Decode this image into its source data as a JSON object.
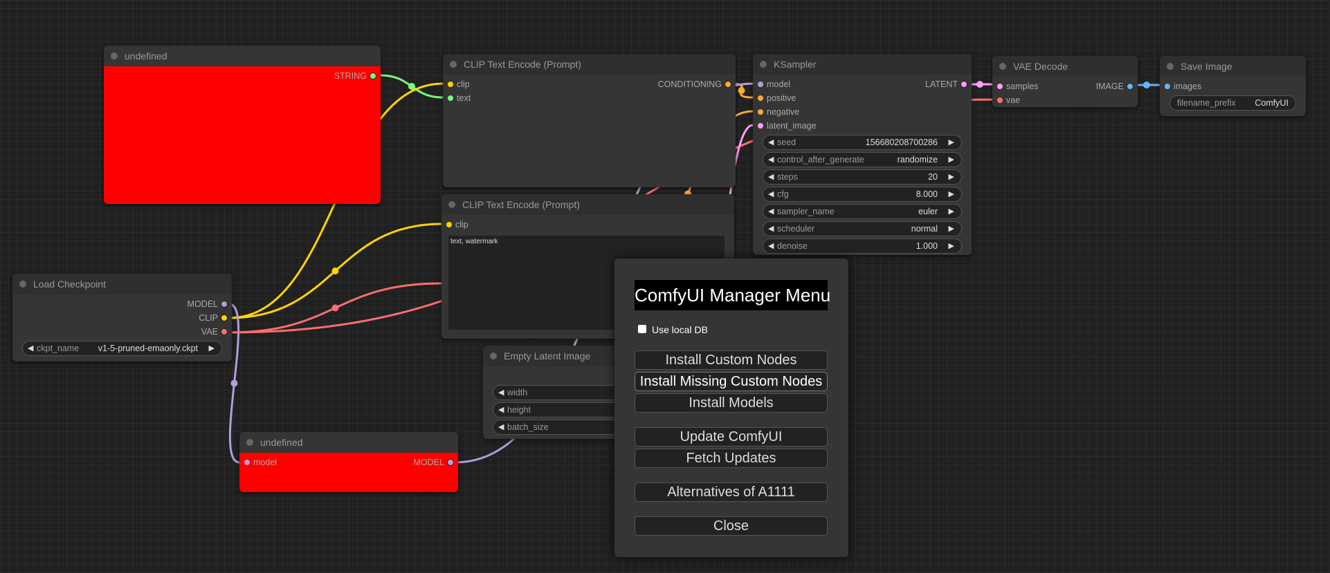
{
  "slot_colors": {
    "MODEL": "#b39ddb",
    "CLIP": "#ffd500",
    "VAE": "#ff6e6e",
    "CONDITIONING": "#ffa931",
    "LATENT": "#ff9cf9",
    "IMAGE": "#64b5f6",
    "STRING": "#77ff77"
  },
  "nodes": [
    {
      "id": "undefined-top",
      "title": "undefined",
      "red": true,
      "inputs": [],
      "outputs": [
        {
          "label": "STRING",
          "type": "STRING"
        }
      ],
      "widgets": []
    },
    {
      "id": "clip-text-encode-1",
      "title": "CLIP Text Encode (Prompt)",
      "inputs": [
        {
          "label": "clip",
          "type": "CLIP"
        },
        {
          "label": "text",
          "type": "STRING"
        }
      ],
      "outputs": [
        {
          "label": "CONDITIONING",
          "type": "CONDITIONING"
        }
      ],
      "widgets": []
    },
    {
      "id": "ksampler",
      "title": "KSampler",
      "inputs": [
        {
          "label": "model",
          "type": "MODEL"
        },
        {
          "label": "positive",
          "type": "CONDITIONING"
        },
        {
          "label": "negative",
          "type": "CONDITIONING"
        },
        {
          "label": "latent_image",
          "type": "LATENT"
        }
      ],
      "outputs": [
        {
          "label": "LATENT",
          "type": "LATENT"
        }
      ],
      "widgets": [
        {
          "label": "seed",
          "value": "156680208700286"
        },
        {
          "label": "control_after_generate",
          "value": "randomize"
        },
        {
          "label": "steps",
          "value": "20"
        },
        {
          "label": "cfg",
          "value": "8.000"
        },
        {
          "label": "sampler_name",
          "value": "euler"
        },
        {
          "label": "scheduler",
          "value": "normal"
        },
        {
          "label": "denoise",
          "value": "1.000"
        }
      ]
    },
    {
      "id": "vae-decode",
      "title": "VAE Decode",
      "inputs": [
        {
          "label": "samples",
          "type": "LATENT"
        },
        {
          "label": "vae",
          "type": "VAE"
        }
      ],
      "outputs": [
        {
          "label": "IMAGE",
          "type": "IMAGE"
        }
      ],
      "widgets": []
    },
    {
      "id": "save-image",
      "title": "Save Image",
      "inputs": [
        {
          "label": "images",
          "type": "IMAGE"
        }
      ],
      "outputs": [],
      "widgets": [
        {
          "label": "filename_prefix",
          "value": "ComfyUI"
        }
      ]
    },
    {
      "id": "clip-text-encode-2",
      "title": "CLIP Text Encode (Prompt)",
      "inputs": [
        {
          "label": "clip",
          "type": "CLIP"
        }
      ],
      "outputs": [],
      "widgets": [],
      "text": "text, watermark"
    },
    {
      "id": "load-checkpoint",
      "title": "Load Checkpoint",
      "inputs": [],
      "outputs": [
        {
          "label": "MODEL",
          "type": "MODEL"
        },
        {
          "label": "CLIP",
          "type": "CLIP"
        },
        {
          "label": "VAE",
          "type": "VAE"
        }
      ],
      "widgets": [
        {
          "label": "ckpt_name",
          "value": "v1-5-pruned-emaonly.ckpt"
        }
      ]
    },
    {
      "id": "empty-latent-image",
      "title": "Empty Latent Image",
      "inputs": [],
      "outputs": [],
      "widgets": [
        {
          "label": "width",
          "value": ""
        },
        {
          "label": "height",
          "value": ""
        },
        {
          "label": "batch_size",
          "value": ""
        }
      ]
    },
    {
      "id": "undefined-bottom",
      "title": "undefined",
      "red": true,
      "inputs": [
        {
          "label": "model",
          "type": "MODEL"
        }
      ],
      "outputs": [
        {
          "label": "MODEL",
          "type": "MODEL"
        }
      ],
      "widgets": []
    }
  ],
  "manager": {
    "title": "ComfyUI Manager Menu",
    "use_local_db_label": "Use local DB",
    "use_local_db_checked": false,
    "buttons": [
      "Install Custom Nodes",
      "Install Missing Custom Nodes",
      "Install Models",
      "Update ComfyUI",
      "Fetch Updates",
      "Alternatives of A1111",
      "Close"
    ]
  }
}
